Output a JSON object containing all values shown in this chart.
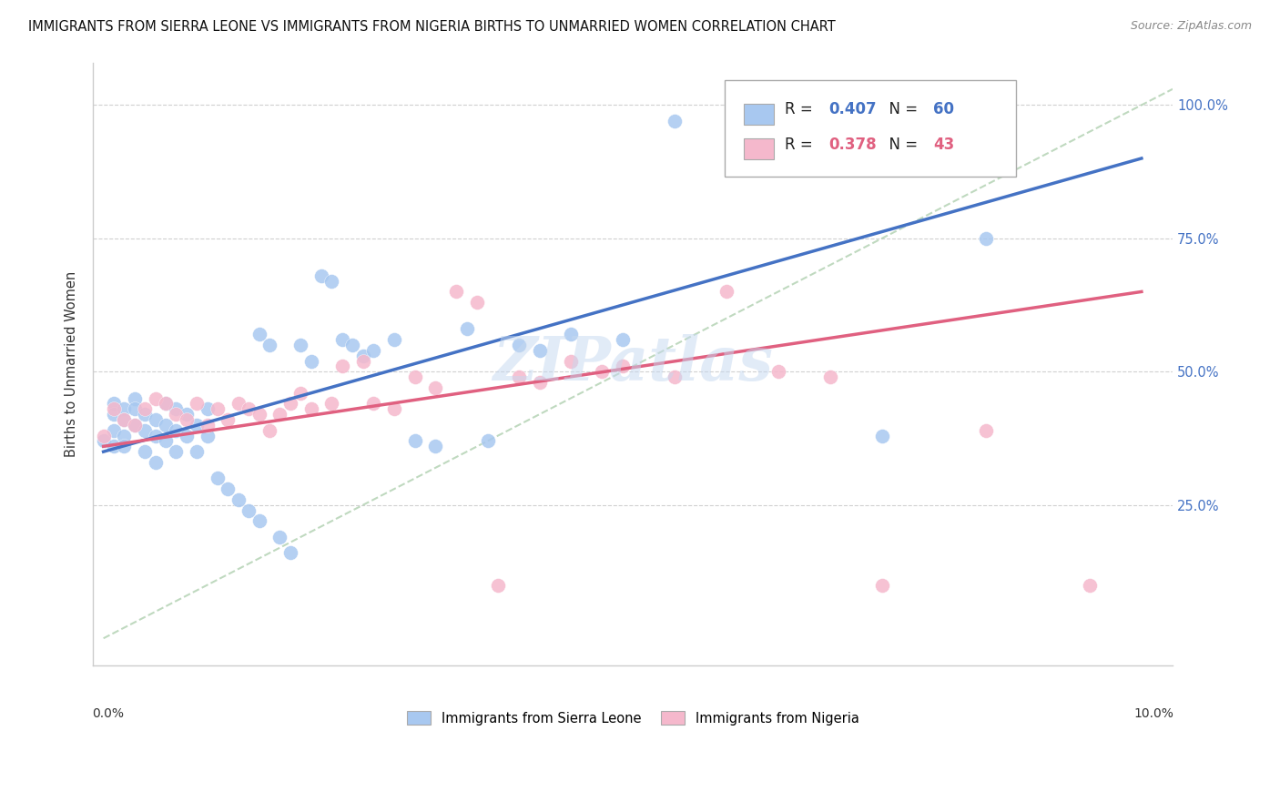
{
  "title": "IMMIGRANTS FROM SIERRA LEONE VS IMMIGRANTS FROM NIGERIA BIRTHS TO UNMARRIED WOMEN CORRELATION CHART",
  "source": "Source: ZipAtlas.com",
  "ylabel": "Births to Unmarried Women",
  "legend_sl": "Immigrants from Sierra Leone",
  "legend_ng": "Immigrants from Nigeria",
  "R_sl": 0.407,
  "N_sl": 60,
  "R_ng": 0.378,
  "N_ng": 43,
  "color_sl": "#a8c8f0",
  "color_ng": "#f5b8cc",
  "color_trendline_sl": "#4472c4",
  "color_trendline_ng": "#e06080",
  "color_dashed": "#b0d0b0",
  "watermark": "ZIPatlas",
  "sl_trend": [
    0.35,
    0.9
  ],
  "ng_trend": [
    0.36,
    0.65
  ],
  "dashed_line": [
    [
      0.0,
      1.0
    ],
    [
      0.0,
      1.0
    ]
  ],
  "ytick_positions": [
    0.25,
    0.5,
    0.75,
    1.0
  ],
  "ytick_labels": [
    "25.0%",
    "50.0%",
    "75.0%",
    "100.0%"
  ],
  "xlim": [
    -0.001,
    0.103
  ],
  "ylim": [
    -0.05,
    1.08
  ],
  "sl_x": [
    0.0,
    0.001,
    0.001,
    0.001,
    0.001,
    0.002,
    0.002,
    0.002,
    0.002,
    0.003,
    0.003,
    0.003,
    0.004,
    0.004,
    0.004,
    0.005,
    0.005,
    0.005,
    0.006,
    0.006,
    0.006,
    0.007,
    0.007,
    0.007,
    0.008,
    0.008,
    0.009,
    0.009,
    0.01,
    0.01,
    0.011,
    0.012,
    0.013,
    0.014,
    0.015,
    0.015,
    0.016,
    0.017,
    0.018,
    0.019,
    0.02,
    0.021,
    0.022,
    0.023,
    0.024,
    0.025,
    0.026,
    0.028,
    0.03,
    0.032,
    0.035,
    0.037,
    0.04,
    0.042,
    0.045,
    0.05,
    0.055,
    0.065,
    0.075,
    0.085
  ],
  "sl_y": [
    0.37,
    0.44,
    0.42,
    0.39,
    0.36,
    0.43,
    0.41,
    0.38,
    0.36,
    0.45,
    0.43,
    0.4,
    0.42,
    0.39,
    0.35,
    0.41,
    0.38,
    0.33,
    0.44,
    0.4,
    0.37,
    0.43,
    0.39,
    0.35,
    0.42,
    0.38,
    0.4,
    0.35,
    0.43,
    0.38,
    0.3,
    0.28,
    0.26,
    0.24,
    0.22,
    0.57,
    0.55,
    0.19,
    0.16,
    0.55,
    0.52,
    0.68,
    0.67,
    0.56,
    0.55,
    0.53,
    0.54,
    0.56,
    0.37,
    0.36,
    0.58,
    0.37,
    0.55,
    0.54,
    0.57,
    0.56,
    0.97,
    0.97,
    0.38,
    0.75
  ],
  "ng_x": [
    0.0,
    0.001,
    0.002,
    0.003,
    0.004,
    0.005,
    0.006,
    0.007,
    0.008,
    0.009,
    0.01,
    0.011,
    0.012,
    0.013,
    0.014,
    0.015,
    0.016,
    0.017,
    0.018,
    0.019,
    0.02,
    0.022,
    0.023,
    0.025,
    0.026,
    0.028,
    0.03,
    0.032,
    0.034,
    0.036,
    0.038,
    0.04,
    0.042,
    0.045,
    0.048,
    0.05,
    0.055,
    0.06,
    0.065,
    0.07,
    0.075,
    0.085,
    0.095
  ],
  "ng_y": [
    0.38,
    0.43,
    0.41,
    0.4,
    0.43,
    0.45,
    0.44,
    0.42,
    0.41,
    0.44,
    0.4,
    0.43,
    0.41,
    0.44,
    0.43,
    0.42,
    0.39,
    0.42,
    0.44,
    0.46,
    0.43,
    0.44,
    0.51,
    0.52,
    0.44,
    0.43,
    0.49,
    0.47,
    0.65,
    0.63,
    0.1,
    0.49,
    0.48,
    0.52,
    0.5,
    0.51,
    0.49,
    0.65,
    0.5,
    0.49,
    0.1,
    0.39,
    0.1
  ]
}
